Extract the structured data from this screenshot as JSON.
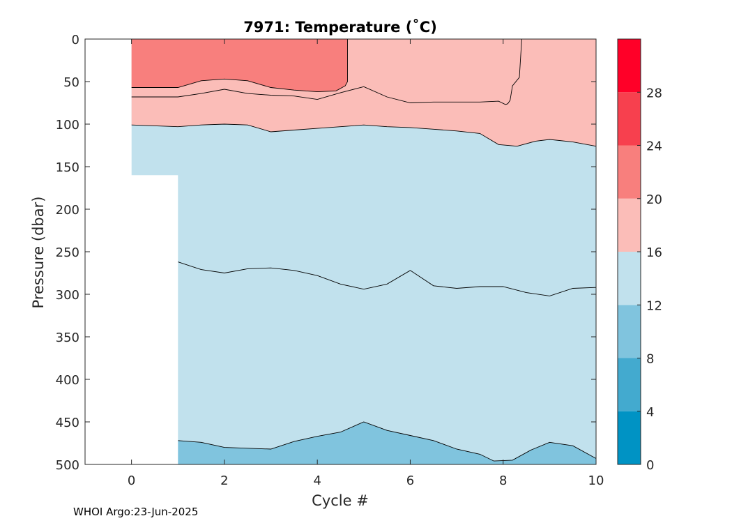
{
  "footer": "WHOI Argo:23-Jun-2025",
  "chart_data": {
    "type": "heatmap",
    "subtype": "filled-contour",
    "title": "7971:  Temperature (˚C)",
    "xlabel": "Cycle #",
    "ylabel": "Pressure (dbar)",
    "xlim": [
      -1,
      10
    ],
    "ylim": [
      0,
      500
    ],
    "y_reversed": true,
    "x_ticks": [
      0,
      2,
      4,
      6,
      8,
      10
    ],
    "x_tick_labels": [
      "0",
      "2",
      "4",
      "6",
      "8",
      "10"
    ],
    "y_ticks": [
      0,
      50,
      100,
      150,
      200,
      250,
      300,
      350,
      400,
      450,
      500
    ],
    "y_tick_labels": [
      "0",
      "50",
      "100",
      "150",
      "200",
      "250",
      "300",
      "350",
      "400",
      "450",
      "500"
    ],
    "grid": false,
    "colorbar": {
      "levels": [
        0,
        4,
        8,
        12,
        16,
        20,
        24,
        28,
        32
      ],
      "tick_values": [
        0,
        4,
        8,
        12,
        16,
        20,
        24,
        28
      ],
      "tick_labels": [
        "0",
        "4",
        "8",
        "12",
        "16",
        "20",
        "24",
        "28"
      ],
      "colors": [
        "#0093c4",
        "#43aacf",
        "#80c4de",
        "#c1e1ed",
        "#fbbdb8",
        "#f87f7d",
        "#f7404e",
        "#ff0028"
      ]
    },
    "data_coverage": [
      {
        "x": [
          0,
          1
        ],
        "max_pressure": 160
      },
      {
        "x": [
          1,
          10
        ],
        "max_pressure": 500
      }
    ],
    "regions": [
      {
        "band": "20-24",
        "color": "#f87f7d",
        "boundary": {
          "x": [
            0,
            1,
            1.5,
            2,
            2.5,
            3,
            3.5,
            4,
            4.4,
            4.6,
            4.65,
            4.65
          ],
          "y": [
            57,
            57,
            49,
            47,
            49,
            57,
            60,
            62,
            61,
            55,
            50,
            0
          ]
        }
      },
      {
        "band": "12-16",
        "color": "#c1e1ed",
        "top_boundary": {
          "x": [
            0,
            0.5,
            1,
            1.5,
            2,
            2.5,
            3,
            3.5,
            4,
            4.5,
            5,
            5.5,
            6,
            6.5,
            7,
            7.5,
            7.9,
            8.3,
            8.7,
            9,
            9.5,
            10
          ],
          "y": [
            101,
            102,
            103,
            101,
            100,
            101,
            109,
            107,
            105,
            103,
            101,
            103,
            104,
            106,
            108,
            111,
            124,
            126,
            120,
            118,
            121,
            126
          ]
        }
      },
      {
        "band": "8-12",
        "color": "#80c4de",
        "top_boundary": {
          "x": [
            1,
            1.5,
            2,
            2.5,
            3,
            3.5,
            4,
            4.5,
            5,
            5.5,
            6,
            6.5,
            7,
            7.5,
            7.8,
            8.2,
            8.6,
            9,
            9.5,
            10
          ],
          "y": [
            472,
            474,
            480,
            481,
            482,
            473,
            467,
            462,
            450,
            460,
            466,
            472,
            482,
            488,
            496,
            495,
            483,
            474,
            478,
            493
          ]
        }
      }
    ],
    "contour_lines": [
      {
        "level": 16,
        "x": [
          0,
          0.5,
          1,
          1.5,
          2,
          2.5,
          3,
          3.5,
          4,
          4.5,
          5,
          5.5,
          6,
          6.5,
          7,
          7.5,
          7.9,
          8.3,
          8.7,
          9,
          9.5,
          10
        ],
        "y": [
          101,
          102,
          103,
          101,
          100,
          101,
          109,
          107,
          105,
          103,
          101,
          103,
          104,
          106,
          108,
          111,
          124,
          126,
          120,
          118,
          121,
          126
        ]
      },
      {
        "level": 20,
        "x": [
          0,
          1,
          1.5,
          2,
          2.5,
          3,
          3.5,
          4,
          4.5,
          5,
          5.5,
          6,
          6.5,
          7,
          7.5,
          7.9,
          8.05,
          8.1,
          8.15,
          8.2,
          8.35,
          8.4
        ],
        "y": [
          68,
          68,
          64,
          59,
          64,
          66,
          67,
          71,
          63,
          56,
          68,
          75,
          74,
          74,
          74,
          73,
          77,
          76,
          72,
          55,
          45,
          0
        ]
      },
      {
        "level": 24,
        "x": [
          0,
          1,
          1.5,
          2,
          2.5,
          3,
          3.5,
          4,
          4.4,
          4.6,
          4.65,
          4.65
        ],
        "y": [
          57,
          57,
          49,
          47,
          49,
          57,
          60,
          62,
          61,
          55,
          50,
          0
        ]
      },
      {
        "level": 12,
        "x": [
          1,
          1.5,
          2,
          2.5,
          3,
          3.5,
          4,
          4.5,
          5,
          5.5,
          6,
          6.5,
          7,
          7.5,
          8,
          8.5,
          9,
          9.5,
          10
        ],
        "y": [
          262,
          271,
          275,
          270,
          269,
          272,
          278,
          288,
          294,
          288,
          272,
          290,
          293,
          291,
          291,
          298,
          302,
          293,
          292
        ]
      },
      {
        "level": 8,
        "x": [
          1,
          1.5,
          2,
          2.5,
          3,
          3.5,
          4,
          4.5,
          5,
          5.5,
          6,
          6.5,
          7,
          7.5,
          7.8,
          8.2,
          8.6,
          9,
          9.5,
          10
        ],
        "y": [
          472,
          474,
          480,
          481,
          482,
          473,
          467,
          462,
          450,
          460,
          466,
          472,
          482,
          488,
          496,
          495,
          483,
          474,
          478,
          493
        ]
      }
    ]
  }
}
